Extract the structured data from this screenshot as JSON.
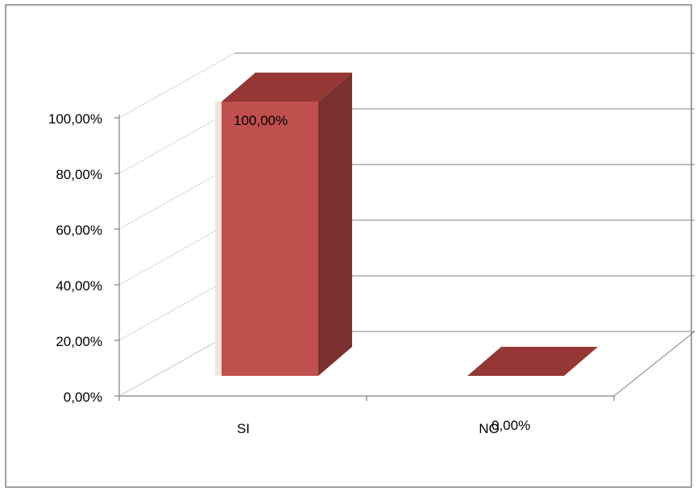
{
  "chart_data": {
    "type": "bar",
    "style": "3d-column",
    "categories": [
      "SI",
      "NO"
    ],
    "values": [
      100,
      0
    ],
    "data_labels": [
      "100,00%",
      "0,00%"
    ],
    "y_tick_labels": [
      "0,00%",
      "20,00%",
      "40,00%",
      "60,00%",
      "80,00%",
      "100,00%"
    ],
    "ylim": [
      0,
      100
    ],
    "y_ticks": [
      0,
      20,
      40,
      60,
      80,
      100
    ],
    "title": "",
    "xlabel": "",
    "ylabel": "",
    "grid": true,
    "legend": "none",
    "colors": {
      "bar_front": "#c0504d",
      "bar_top": "#953735",
      "bar_side": "#7a3130",
      "gridline": "#808080",
      "wall_gridline": "#d9d9d9",
      "axis": "#808080",
      "frame": "#808080"
    }
  }
}
